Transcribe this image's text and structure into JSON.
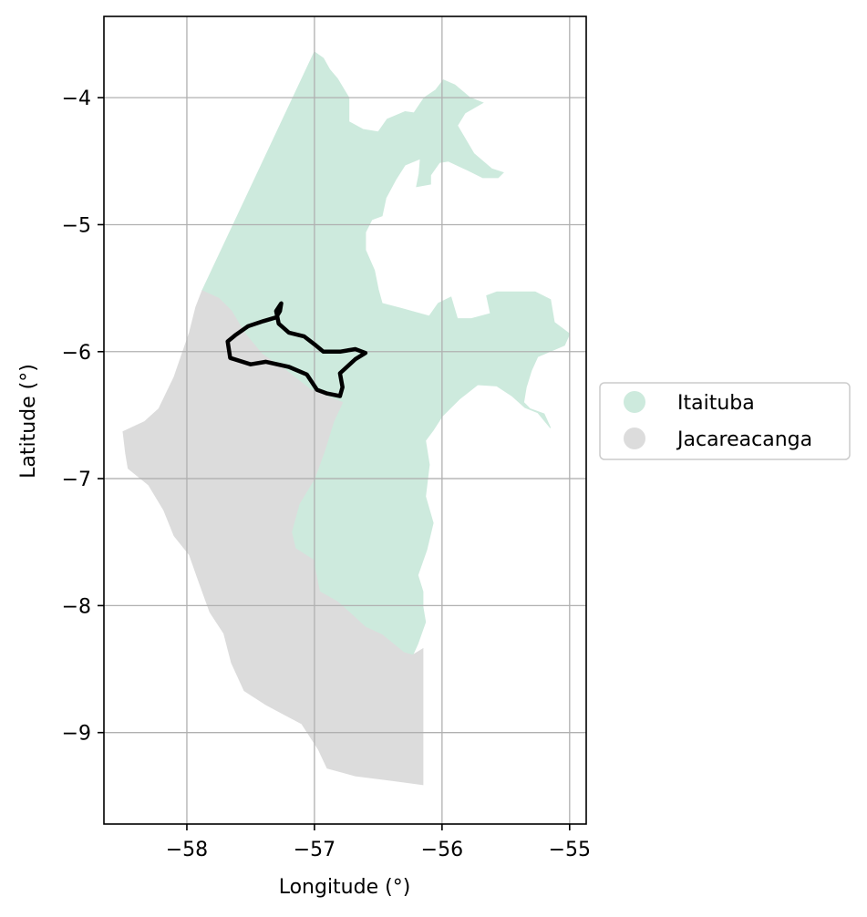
{
  "chart_data": {
    "type": "map",
    "xlabel": "Longitude (°)",
    "ylabel": "Latitude (°)",
    "xlim": [
      -58.65,
      -54.87
    ],
    "ylim": [
      -9.72,
      -3.36
    ],
    "grid": true,
    "xticks": [
      -58,
      -57,
      -56,
      -55
    ],
    "yticks": [
      -4,
      -5,
      -6,
      -7,
      -8,
      -9
    ],
    "xtick_labels": [
      "−58",
      "−57",
      "−56",
      "−55"
    ],
    "ytick_labels": [
      "−4",
      "−5",
      "−6",
      "−7",
      "−8",
      "−9"
    ],
    "legend_position": "right",
    "regions": [
      {
        "name": "Itaituba",
        "color": "#cdeadd",
        "polygon": [
          [
            -57.88,
            -5.52
          ],
          [
            -57.0,
            -3.64
          ],
          [
            -56.93,
            -3.69
          ],
          [
            -56.88,
            -3.78
          ],
          [
            -56.82,
            -3.85
          ],
          [
            -56.73,
            -4.0
          ],
          [
            -56.73,
            -4.19
          ],
          [
            -56.62,
            -4.25
          ],
          [
            -56.5,
            -4.27
          ],
          [
            -56.43,
            -4.17
          ],
          [
            -56.29,
            -4.11
          ],
          [
            -56.22,
            -4.12
          ],
          [
            -56.14,
            -4.0
          ],
          [
            -56.05,
            -3.94
          ],
          [
            -55.99,
            -3.86
          ],
          [
            -55.9,
            -3.9
          ],
          [
            -55.78,
            -4.0
          ],
          [
            -55.68,
            -4.04
          ],
          [
            -55.82,
            -4.12
          ],
          [
            -55.88,
            -4.22
          ],
          [
            -55.75,
            -4.44
          ],
          [
            -55.61,
            -4.56
          ],
          [
            -55.52,
            -4.59
          ],
          [
            -55.56,
            -4.63
          ],
          [
            -55.68,
            -4.63
          ],
          [
            -55.8,
            -4.57
          ],
          [
            -55.95,
            -4.5
          ],
          [
            -56.02,
            -4.51
          ],
          [
            -56.09,
            -4.61
          ],
          [
            -56.09,
            -4.68
          ],
          [
            -56.2,
            -4.7
          ],
          [
            -56.18,
            -4.6
          ],
          [
            -56.17,
            -4.48
          ],
          [
            -56.29,
            -4.53
          ],
          [
            -56.36,
            -4.64
          ],
          [
            -56.44,
            -4.79
          ],
          [
            -56.47,
            -4.93
          ],
          [
            -56.55,
            -4.96
          ],
          [
            -56.6,
            -5.06
          ],
          [
            -56.6,
            -5.2
          ],
          [
            -56.53,
            -5.36
          ],
          [
            -56.5,
            -5.51
          ],
          [
            -56.47,
            -5.62
          ],
          [
            -56.32,
            -5.66
          ],
          [
            -56.1,
            -5.72
          ],
          [
            -56.03,
            -5.62
          ],
          [
            -55.93,
            -5.57
          ],
          [
            -55.88,
            -5.74
          ],
          [
            -55.77,
            -5.74
          ],
          [
            -55.62,
            -5.7
          ],
          [
            -55.65,
            -5.56
          ],
          [
            -55.57,
            -5.53
          ],
          [
            -55.35,
            -5.53
          ],
          [
            -55.27,
            -5.53
          ],
          [
            -55.15,
            -5.59
          ],
          [
            -55.12,
            -5.77
          ],
          [
            -55.0,
            -5.86
          ],
          [
            -55.04,
            -5.95
          ],
          [
            -55.25,
            -6.04
          ],
          [
            -55.3,
            -6.15
          ],
          [
            -55.34,
            -6.28
          ],
          [
            -55.36,
            -6.4
          ],
          [
            -55.31,
            -6.45
          ],
          [
            -55.2,
            -6.49
          ],
          [
            -55.15,
            -6.6
          ],
          [
            -55.25,
            -6.48
          ],
          [
            -55.35,
            -6.44
          ],
          [
            -55.45,
            -6.35
          ],
          [
            -55.57,
            -6.27
          ],
          [
            -55.72,
            -6.26
          ],
          [
            -55.86,
            -6.37
          ],
          [
            -56.0,
            -6.51
          ],
          [
            -56.07,
            -6.62
          ],
          [
            -56.13,
            -6.7
          ],
          [
            -56.1,
            -6.89
          ],
          [
            -56.13,
            -7.14
          ],
          [
            -56.07,
            -7.35
          ],
          [
            -56.12,
            -7.56
          ],
          [
            -56.19,
            -7.76
          ],
          [
            -56.15,
            -7.89
          ],
          [
            -56.15,
            -8.01
          ],
          [
            -56.13,
            -8.13
          ],
          [
            -56.19,
            -8.3
          ],
          [
            -56.23,
            -8.39
          ],
          [
            -56.3,
            -8.37
          ],
          [
            -56.47,
            -8.23
          ],
          [
            -56.6,
            -8.17
          ],
          [
            -56.73,
            -8.05
          ],
          [
            -56.82,
            -7.97
          ],
          [
            -56.96,
            -7.89
          ],
          [
            -56.99,
            -7.74
          ],
          [
            -57.01,
            -7.64
          ],
          [
            -57.15,
            -7.55
          ],
          [
            -57.18,
            -7.42
          ],
          [
            -57.12,
            -7.2
          ],
          [
            -57.0,
            -7.0
          ],
          [
            -56.92,
            -6.78
          ],
          [
            -56.85,
            -6.55
          ],
          [
            -56.78,
            -6.4
          ],
          [
            -57.03,
            -6.3
          ],
          [
            -57.22,
            -6.15
          ],
          [
            -57.41,
            -6.02
          ],
          [
            -57.55,
            -5.85
          ],
          [
            -57.65,
            -5.68
          ],
          [
            -57.75,
            -5.58
          ]
        ]
      },
      {
        "name": "Jacareacanga",
        "color": "#dcdcdc",
        "polygon": [
          [
            -57.88,
            -5.52
          ],
          [
            -57.75,
            -5.58
          ],
          [
            -57.65,
            -5.68
          ],
          [
            -57.55,
            -5.85
          ],
          [
            -57.41,
            -6.02
          ],
          [
            -57.22,
            -6.15
          ],
          [
            -57.03,
            -6.3
          ],
          [
            -56.78,
            -6.4
          ],
          [
            -56.85,
            -6.55
          ],
          [
            -56.92,
            -6.78
          ],
          [
            -57.0,
            -7.0
          ],
          [
            -57.12,
            -7.2
          ],
          [
            -57.18,
            -7.42
          ],
          [
            -57.15,
            -7.55
          ],
          [
            -57.01,
            -7.64
          ],
          [
            -56.99,
            -7.74
          ],
          [
            -56.96,
            -7.89
          ],
          [
            -56.82,
            -7.97
          ],
          [
            -56.73,
            -8.05
          ],
          [
            -56.6,
            -8.17
          ],
          [
            -56.47,
            -8.23
          ],
          [
            -56.3,
            -8.37
          ],
          [
            -56.23,
            -8.39
          ],
          [
            -56.15,
            -8.34
          ],
          [
            -56.15,
            -9.41
          ],
          [
            -56.37,
            -9.38
          ],
          [
            -56.68,
            -9.34
          ],
          [
            -56.9,
            -9.28
          ],
          [
            -56.97,
            -9.13
          ],
          [
            -57.1,
            -8.93
          ],
          [
            -57.25,
            -8.85
          ],
          [
            -57.38,
            -8.78
          ],
          [
            -57.55,
            -8.67
          ],
          [
            -57.65,
            -8.45
          ],
          [
            -57.71,
            -8.22
          ],
          [
            -57.82,
            -8.05
          ],
          [
            -57.91,
            -7.8
          ],
          [
            -57.98,
            -7.6
          ],
          [
            -58.1,
            -7.45
          ],
          [
            -58.18,
            -7.25
          ],
          [
            -58.3,
            -7.05
          ],
          [
            -58.46,
            -6.92
          ],
          [
            -58.48,
            -6.8
          ],
          [
            -58.5,
            -6.63
          ],
          [
            -58.33,
            -6.55
          ],
          [
            -58.22,
            -6.45
          ],
          [
            -58.1,
            -6.2
          ],
          [
            -57.98,
            -5.85
          ],
          [
            -57.93,
            -5.65
          ]
        ]
      }
    ],
    "outline": {
      "color": "#000000",
      "polygon": [
        [
          -57.26,
          -5.62
        ],
        [
          -57.27,
          -5.68
        ],
        [
          -57.3,
          -5.73
        ],
        [
          -57.4,
          -5.76
        ],
        [
          -57.52,
          -5.8
        ],
        [
          -57.62,
          -5.87
        ],
        [
          -57.68,
          -5.92
        ],
        [
          -57.66,
          -6.05
        ],
        [
          -57.5,
          -6.1
        ],
        [
          -57.38,
          -6.08
        ],
        [
          -57.2,
          -6.12
        ],
        [
          -57.06,
          -6.18
        ],
        [
          -56.98,
          -6.3
        ],
        [
          -56.9,
          -6.33
        ],
        [
          -56.8,
          -6.35
        ],
        [
          -56.78,
          -6.28
        ],
        [
          -56.8,
          -6.17
        ],
        [
          -56.68,
          -6.06
        ],
        [
          -56.6,
          -6.01
        ],
        [
          -56.68,
          -5.98
        ],
        [
          -56.8,
          -6.0
        ],
        [
          -56.93,
          -6.0
        ],
        [
          -56.99,
          -5.95
        ],
        [
          -57.08,
          -5.88
        ],
        [
          -57.2,
          -5.85
        ],
        [
          -57.28,
          -5.78
        ],
        [
          -57.3,
          -5.68
        ]
      ]
    }
  }
}
